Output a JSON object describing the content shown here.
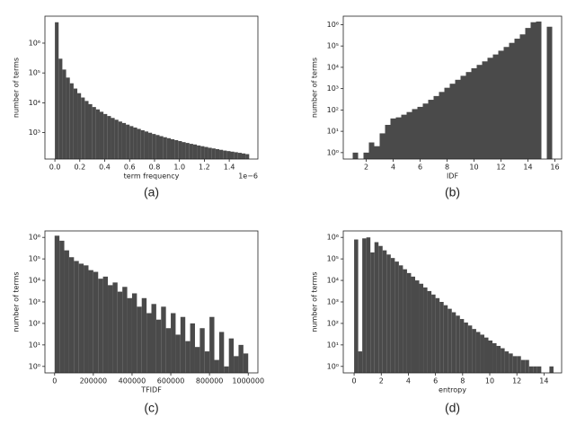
{
  "chart_data": [
    {
      "type": "histogram",
      "caption": "(a)",
      "xlabel": "term frequency",
      "ylabel": "number of terms",
      "x_offset_label": "1e−6",
      "color": "#4a4a4a",
      "log_y": true,
      "bins": [
        0,
        0.03,
        0.06,
        0.09,
        0.12,
        0.15,
        0.18,
        0.21,
        0.24,
        0.27,
        0.3,
        0.33,
        0.36,
        0.39,
        0.42,
        0.45,
        0.48,
        0.51,
        0.54,
        0.57,
        0.6,
        0.63,
        0.66,
        0.69,
        0.72,
        0.75,
        0.78,
        0.81,
        0.84,
        0.87,
        0.9,
        0.93,
        0.96,
        0.99,
        1.02,
        1.05,
        1.08,
        1.11,
        1.14,
        1.17,
        1.2,
        1.23,
        1.26,
        1.29,
        1.32,
        1.35,
        1.38,
        1.41,
        1.44,
        1.47,
        1.5,
        1.53,
        1.56
      ],
      "counts": [
        5000000,
        300000,
        130000,
        70000,
        45000,
        30000,
        21000,
        15000,
        11500,
        9000,
        7200,
        6000,
        5000,
        4200,
        3600,
        3100,
        2700,
        2350,
        2100,
        1850,
        1650,
        1480,
        1330,
        1200,
        1090,
        990,
        900,
        830,
        760,
        700,
        650,
        600,
        560,
        520,
        480,
        450,
        420,
        400,
        370,
        350,
        330,
        310,
        295,
        280,
        265,
        250,
        240,
        230,
        220,
        210,
        200,
        190
      ],
      "xlim": [
        -0.08,
        1.63
      ],
      "xticks": [
        {
          "value": 0,
          "label": "0.0"
        },
        {
          "value": 0.2,
          "label": "0.2"
        },
        {
          "value": 0.4,
          "label": "0.4"
        },
        {
          "value": 0.6,
          "label": "0.6"
        },
        {
          "value": 0.8,
          "label": "0.8"
        },
        {
          "value": 1,
          "label": "1.0"
        },
        {
          "value": 1.2,
          "label": "1.2"
        },
        {
          "value": 1.4,
          "label": "1.4"
        }
      ],
      "ylim": [
        130,
        8000000
      ],
      "yticks": [
        {
          "value": 1000,
          "label": "10³"
        },
        {
          "value": 10000,
          "label": "10⁴"
        },
        {
          "value": 100000,
          "label": "10⁵"
        },
        {
          "value": 1000000,
          "label": "10⁶"
        }
      ]
    },
    {
      "type": "histogram",
      "caption": "(b)",
      "xlabel": "IDF",
      "ylabel": "number of terms",
      "color": "#4a4a4a",
      "log_y": true,
      "bins": [
        1.0,
        1.4,
        1.8,
        2.2,
        2.6,
        3.0,
        3.4,
        3.8,
        4.2,
        4.6,
        5.0,
        5.4,
        5.8,
        6.2,
        6.6,
        7.0,
        7.4,
        7.8,
        8.2,
        8.6,
        9.0,
        9.4,
        9.8,
        10.2,
        10.6,
        11.0,
        11.4,
        11.8,
        12.2,
        12.6,
        13.0,
        13.4,
        13.8,
        14.2,
        14.6,
        15.0,
        15.4,
        15.8
      ],
      "counts": [
        1,
        0,
        1,
        3,
        2,
        8,
        20,
        40,
        45,
        60,
        80,
        110,
        140,
        200,
        300,
        450,
        700,
        1100,
        1700,
        2600,
        4000,
        6000,
        9000,
        13000,
        19000,
        28000,
        40000,
        60000,
        90000,
        140000,
        220000,
        350000,
        700000,
        1300000,
        1400000,
        0,
        800000
      ],
      "xlim": [
        0.3,
        16.5
      ],
      "xticks": [
        2,
        4,
        6,
        8,
        10,
        12,
        14,
        16
      ],
      "ylim": [
        0.5,
        2500000
      ],
      "yticks": [
        {
          "value": 1,
          "label": "10⁰"
        },
        {
          "value": 10,
          "label": "10¹"
        },
        {
          "value": 100,
          "label": "10²"
        },
        {
          "value": 1000,
          "label": "10³"
        },
        {
          "value": 10000,
          "label": "10⁴"
        },
        {
          "value": 100000,
          "label": "10⁵"
        },
        {
          "value": 1000000,
          "label": "10⁶"
        }
      ]
    },
    {
      "type": "histogram",
      "caption": "(c)",
      "xlabel": "TFIDF",
      "ylabel": "number of terms",
      "color": "#4a4a4a",
      "log_y": true,
      "bins": [
        0,
        25000,
        50000,
        75000,
        100000,
        125000,
        150000,
        175000,
        200000,
        225000,
        250000,
        275000,
        300000,
        325000,
        350000,
        375000,
        400000,
        425000,
        450000,
        475000,
        500000,
        525000,
        550000,
        575000,
        600000,
        625000,
        650000,
        675000,
        700000,
        725000,
        750000,
        775000,
        800000,
        825000,
        850000,
        875000,
        900000,
        925000,
        950000,
        975000,
        1000000
      ],
      "counts": [
        1200000,
        700000,
        250000,
        120000,
        80000,
        60000,
        50000,
        30000,
        25000,
        12000,
        15000,
        6000,
        8000,
        3000,
        5000,
        1500,
        2500,
        600,
        1500,
        300,
        800,
        150,
        600,
        60,
        300,
        30,
        200,
        15,
        100,
        8,
        60,
        5,
        200,
        2,
        40,
        1,
        20,
        3,
        10,
        4
      ],
      "xlim": [
        -50000,
        1050000
      ],
      "xticks": [
        0,
        200000,
        400000,
        600000,
        800000,
        1000000
      ],
      "ylim": [
        0.5,
        2000000
      ],
      "yticks": [
        {
          "value": 1,
          "label": "10⁰"
        },
        {
          "value": 10,
          "label": "10¹"
        },
        {
          "value": 100,
          "label": "10²"
        },
        {
          "value": 1000,
          "label": "10³"
        },
        {
          "value": 10000,
          "label": "10⁴"
        },
        {
          "value": 100000,
          "label": "10⁵"
        },
        {
          "value": 1000000,
          "label": "10⁶"
        }
      ]
    },
    {
      "type": "histogram",
      "caption": "(d)",
      "xlabel": "entropy",
      "ylabel": "number of terms",
      "color": "#4a4a4a",
      "log_y": true,
      "bins": [
        0,
        0.3,
        0.6,
        0.9,
        1.2,
        1.5,
        1.8,
        2.1,
        2.4,
        2.7,
        3.0,
        3.3,
        3.6,
        3.9,
        4.2,
        4.5,
        4.8,
        5.1,
        5.4,
        5.7,
        6.0,
        6.3,
        6.6,
        6.9,
        7.2,
        7.5,
        7.8,
        8.1,
        8.4,
        8.7,
        9.0,
        9.3,
        9.6,
        9.9,
        10.2,
        10.5,
        10.8,
        11.1,
        11.4,
        11.7,
        12.0,
        12.3,
        12.6,
        12.9,
        13.2,
        13.5,
        13.8,
        14.1,
        14.4,
        14.7
      ],
      "counts": [
        800000,
        5,
        900000,
        1000000,
        200000,
        600000,
        400000,
        250000,
        160000,
        110000,
        75000,
        50000,
        33000,
        22000,
        15000,
        10000,
        7000,
        4700,
        3200,
        2200,
        1500,
        1000,
        700,
        480,
        330,
        230,
        160,
        110,
        80,
        55,
        40,
        30,
        22,
        16,
        12,
        9,
        7,
        5,
        4,
        3,
        3,
        2,
        2,
        1,
        1,
        1,
        0,
        0,
        1
      ],
      "xlim": [
        -0.8,
        15.3
      ],
      "xticks": [
        0,
        2,
        4,
        6,
        8,
        10,
        12,
        14
      ],
      "ylim": [
        0.5,
        2000000
      ],
      "yticks": [
        {
          "value": 1,
          "label": "10⁰"
        },
        {
          "value": 10,
          "label": "10¹"
        },
        {
          "value": 100,
          "label": "10²"
        },
        {
          "value": 1000,
          "label": "10³"
        },
        {
          "value": 10000,
          "label": "10⁴"
        },
        {
          "value": 100000,
          "label": "10⁵"
        },
        {
          "value": 1000000,
          "label": "10⁶"
        }
      ]
    }
  ]
}
